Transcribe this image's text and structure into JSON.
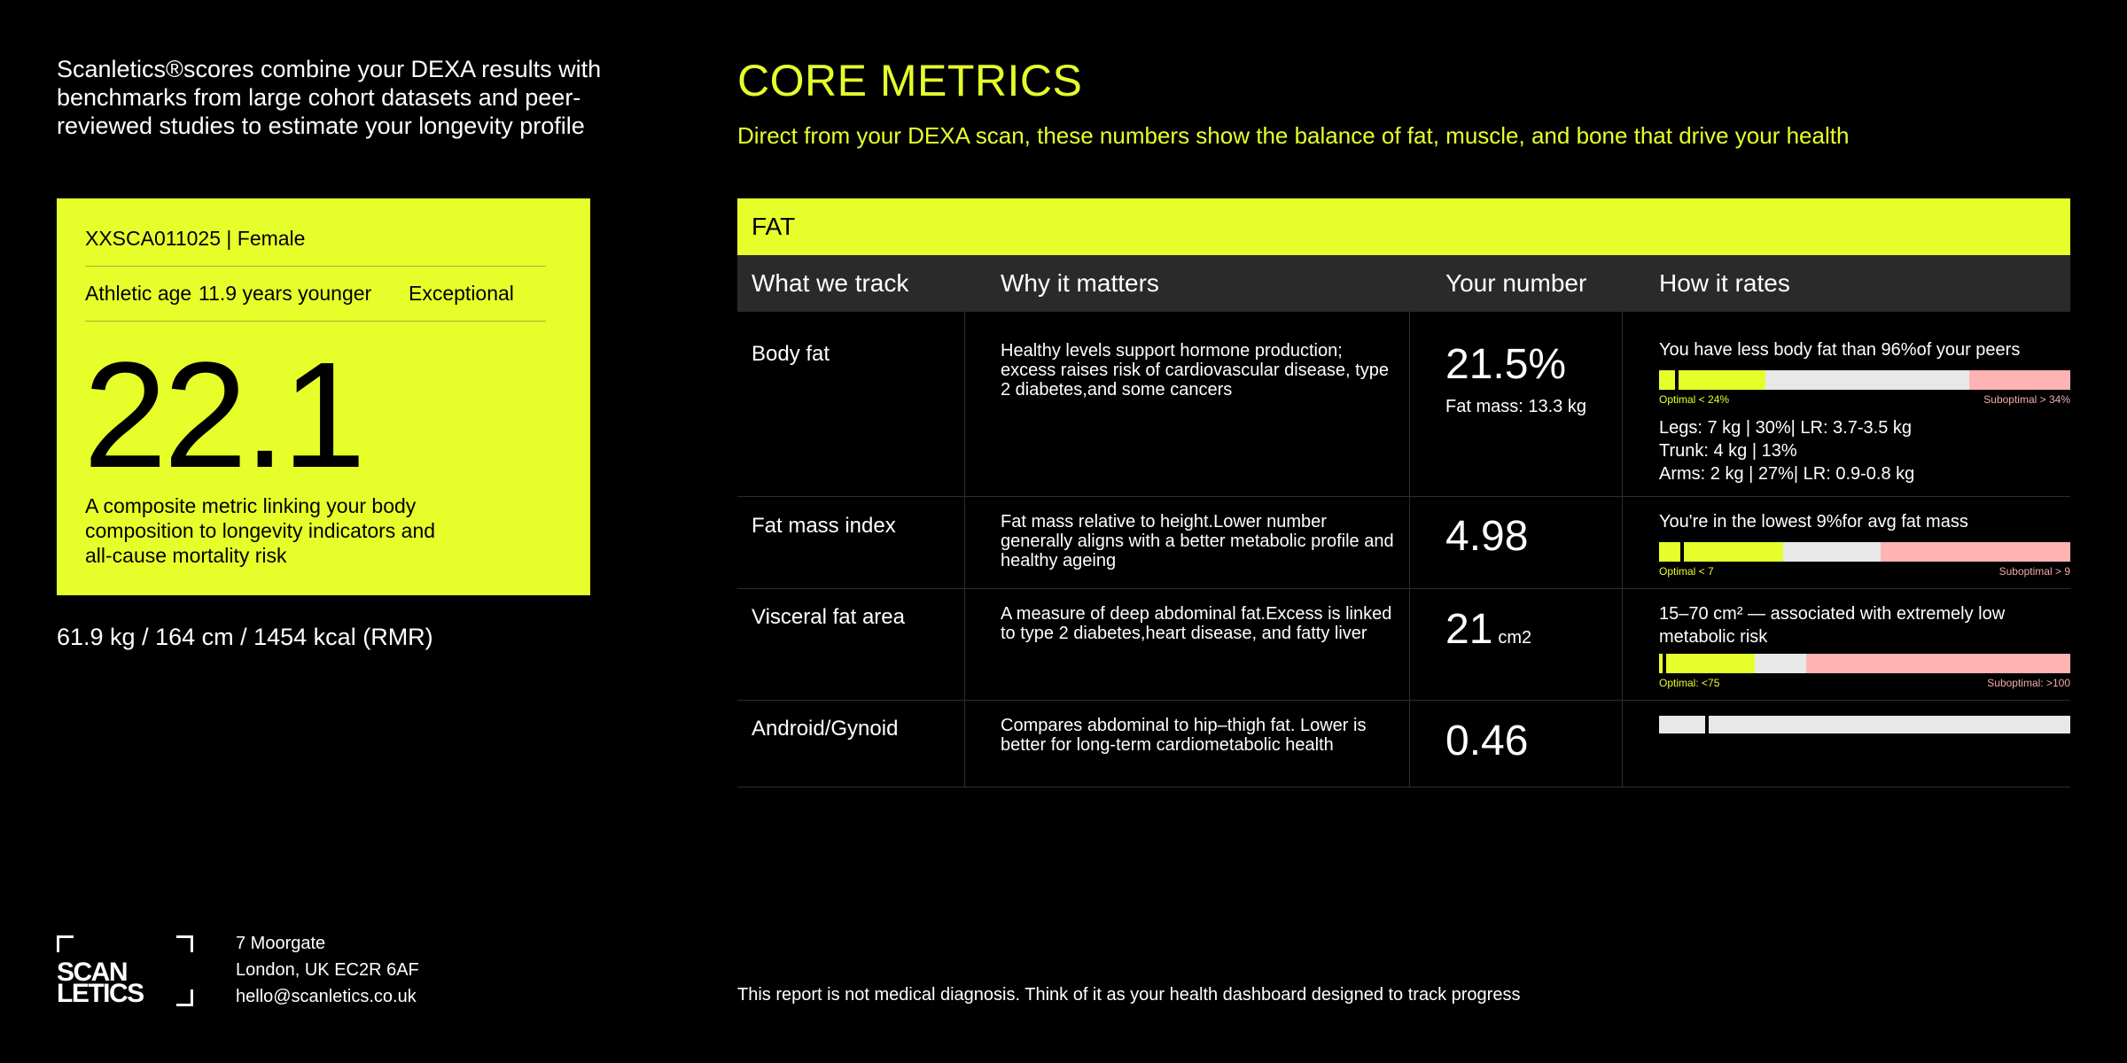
{
  "intro": "Scanletics®scores combine your DEXA results with benchmarks from large cohort datasets and peer-reviewed studies to estimate your longevity profile",
  "score_card": {
    "id_line": "XXSCA011025 | Female",
    "athletic_label": "Athletic age",
    "years_label": "11.9 years younger",
    "rating": "Exceptional",
    "score": "22.1",
    "description": "A composite metric linking your body composition to longevity indicators and all-cause mortality risk"
  },
  "vitals": "61.9 kg / 164 cm / 1454 kcal (RMR)",
  "main": {
    "title": "CORE METRICS",
    "subtitle": "Direct from your DEXA scan, these numbers show the balance of fat, muscle, and bone that drive your health",
    "section": "FAT",
    "columns": [
      "What we track",
      "Why it matters",
      "Your number",
      "How it rates"
    ],
    "rows": [
      {
        "metric": "Body fat",
        "why": "Healthy levels support hormone production; excess raises risk of cardiovascular disease, type 2 diabetes,and some cancers",
        "number": "21.5%",
        "sub": "Fat mass: 13.3 kg",
        "rate": "You have less body fat than 96%of your peers",
        "optimal_label": "Optimal < 24%",
        "suboptimal_label": "Suboptimal > 34%",
        "segments": [
          "Legs: 7 kg | 30%| LR: 3.7-3.5 kg",
          "Trunk: 4 kg | 13%",
          "Arms: 2 kg | 27%| LR: 0.9-0.8 kg"
        ]
      },
      {
        "metric": "Fat mass index",
        "why": "Fat mass relative to height.Lower number generally aligns with a better metabolic profile and healthy ageing",
        "number": "4.98",
        "rate": "You're in the lowest 9%for avg fat mass",
        "optimal_label": "Optimal < 7",
        "suboptimal_label": "Suboptimal > 9"
      },
      {
        "metric": "Visceral fat area",
        "why": "A measure of deep abdominal fat.Excess is linked to type 2 diabetes,heart disease, and fatty liver",
        "number": "21",
        "unit": "cm2",
        "rate": "15–70 cm² — associated with extremely low metabolic risk",
        "optimal_label": "Optimal: <75",
        "suboptimal_label": "Suboptimal: >100"
      },
      {
        "metric": "Android/Gynoid",
        "why": "Compares abdominal to hip–thigh fat. Lower is better for long-term cardiometabolic health",
        "number": "0.46"
      }
    ]
  },
  "footer": {
    "logo_line1": "SCAN",
    "logo_line2": "LETICS",
    "address_line1": "7 Moorgate",
    "address_line2": "London, UK EC2R 6AF",
    "email": "hello@scanletics.co.uk",
    "disclaimer": "This report is not medical diagnosis. Think of it as your health dashboard designed to track progress"
  },
  "colors": {
    "accent": "#e6ff2b",
    "suboptimal": "#ffb3b3",
    "neutral": "#e8e8e8",
    "header_bg": "#2a2a2a"
  }
}
